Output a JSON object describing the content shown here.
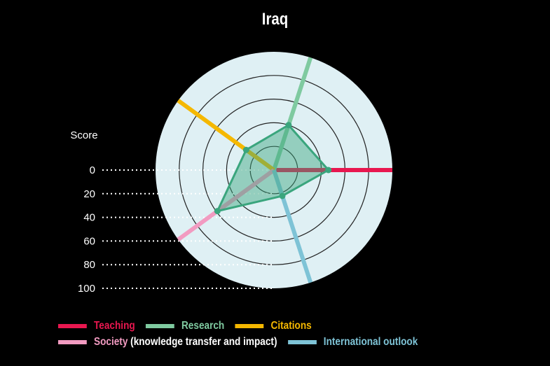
{
  "chart_data": {
    "type": "radar",
    "title": "Iraq",
    "axis_label": "Score",
    "scale_ticks": [
      "0",
      "20",
      "40",
      "60",
      "80",
      "100"
    ],
    "range": [
      0,
      100
    ],
    "axes": [
      {
        "name": "Teaching",
        "color": "#e8174f",
        "value": 46
      },
      {
        "name": "Research",
        "color": "#7fcaa0",
        "value": 40
      },
      {
        "name": "Citations",
        "color": "#f5b800",
        "value": 29
      },
      {
        "name": "Society",
        "suffix": " (knowledge transfer and impact)",
        "color": "#f29bc1",
        "value": 59
      },
      {
        "name": "International outlook",
        "color": "#7ec3d6",
        "value": 23
      }
    ],
    "polygon_color": "#3aa57d",
    "background_color": "#dff0f4"
  }
}
